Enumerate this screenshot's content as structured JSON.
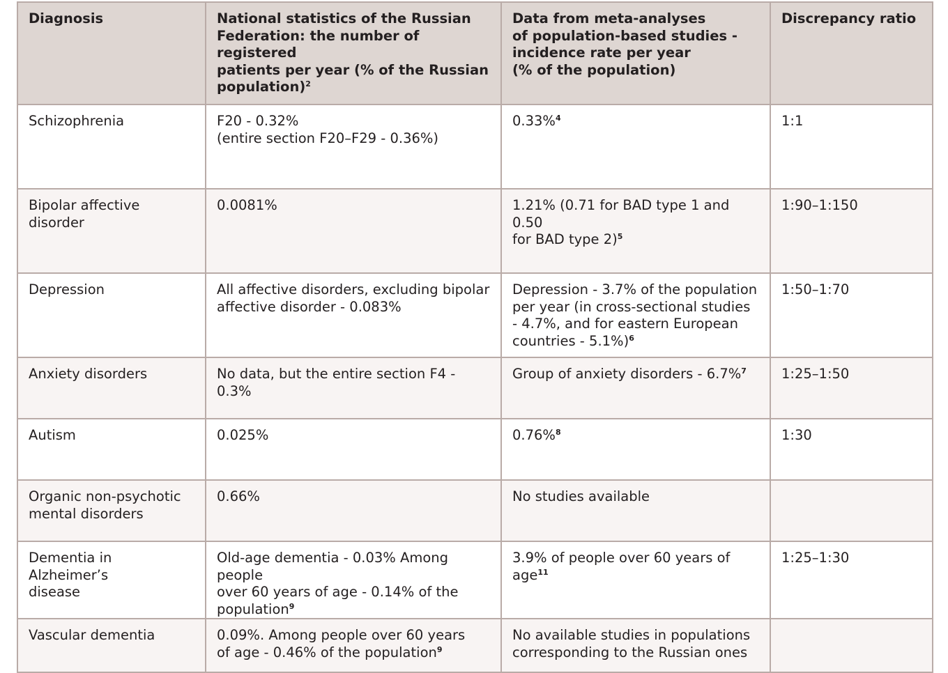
{
  "headers": [
    {
      "lines": [
        "Diagnosis"
      ],
      "sup": ""
    },
    {
      "lines": [
        "National statistics of the Russian",
        "Federation: the number of registered",
        "patients per year (% of the Russian",
        "population)"
      ],
      "sup": "2"
    },
    {
      "lines": [
        "Data from meta-analyses",
        "of population-based studies -",
        "incidence rate per year",
        "(% of the population)"
      ],
      "sup": ""
    },
    {
      "lines": [
        "Discrepancy ratio"
      ],
      "sup": ""
    }
  ],
  "rows": [
    {
      "diagnosis": {
        "lines": [
          "Schizophrenia"
        ],
        "sup": ""
      },
      "national": {
        "lines": [
          "F20 - 0.32%",
          "(entire section F20–F29 - 0.36%)"
        ],
        "sup": ""
      },
      "meta": {
        "lines": [
          "0.33%"
        ],
        "sup": "4"
      },
      "ratio": {
        "lines": [
          "1:1"
        ],
        "sup": ""
      }
    },
    {
      "diagnosis": {
        "lines": [
          "Bipolar affective disorder"
        ],
        "sup": ""
      },
      "national": {
        "lines": [
          "0.0081%"
        ],
        "sup": ""
      },
      "meta": {
        "lines": [
          "1.21% (0.71 for BAD type 1 and 0.50",
          "for BAD type 2)"
        ],
        "sup": "5"
      },
      "ratio": {
        "lines": [
          "1:90–1:150"
        ],
        "sup": ""
      }
    },
    {
      "diagnosis": {
        "lines": [
          "Depression"
        ],
        "sup": ""
      },
      "national": {
        "lines": [
          "All affective disorders, excluding bipolar",
          "affective disorder - 0.083%"
        ],
        "sup": ""
      },
      "meta": {
        "lines": [
          "Depression - 3.7% of the population",
          "per year (in cross-sectional studies",
          "- 4.7%, and for eastern European",
          "countries - 5.1%)"
        ],
        "sup": "6"
      },
      "ratio": {
        "lines": [
          "1:50–1:70"
        ],
        "sup": ""
      }
    },
    {
      "diagnosis": {
        "lines": [
          "Anxiety disorders"
        ],
        "sup": ""
      },
      "national": {
        "lines": [
          "No data, but the entire section F4 - 0.3%"
        ],
        "sup": ""
      },
      "meta": {
        "lines": [
          "Group of anxiety disorders - 6.7%"
        ],
        "sup": "7"
      },
      "ratio": {
        "lines": [
          "1:25–1:50"
        ],
        "sup": ""
      }
    },
    {
      "diagnosis": {
        "lines": [
          "Autism"
        ],
        "sup": ""
      },
      "national": {
        "lines": [
          "0.025%"
        ],
        "sup": ""
      },
      "meta": {
        "lines": [
          "0.76%"
        ],
        "sup": "8"
      },
      "ratio": {
        "lines": [
          "1:30"
        ],
        "sup": ""
      }
    },
    {
      "diagnosis": {
        "lines": [
          "Organic non-psychotic",
          "mental disorders"
        ],
        "sup": ""
      },
      "national": {
        "lines": [
          "0.66%"
        ],
        "sup": ""
      },
      "meta": {
        "lines": [
          "No studies available"
        ],
        "sup": ""
      },
      "ratio": {
        "lines": [],
        "sup": ""
      }
    },
    {
      "diagnosis": {
        "lines": [
          "Dementia in Alzheimer’s",
          "disease"
        ],
        "sup": ""
      },
      "national": {
        "lines": [
          "Old-age dementia - 0.03% Among people",
          "over 60 years of age - 0.14% of the",
          "population"
        ],
        "sup": "9"
      },
      "meta": {
        "lines": [
          "3.9% of people over 60 years of age"
        ],
        "sup": "11"
      },
      "ratio": {
        "lines": [
          "1:25–1:30"
        ],
        "sup": ""
      }
    },
    {
      "diagnosis": {
        "lines": [
          "Vascular dementia"
        ],
        "sup": ""
      },
      "national": {
        "lines": [
          "0.09%. Among people over 60 years",
          "of age - 0.46% of the population"
        ],
        "sup": "9"
      },
      "meta": {
        "lines": [
          "No available studies in populations",
          "corresponding to the Russian ones"
        ],
        "sup": ""
      },
      "ratio": {
        "lines": [],
        "sup": ""
      }
    }
  ]
}
